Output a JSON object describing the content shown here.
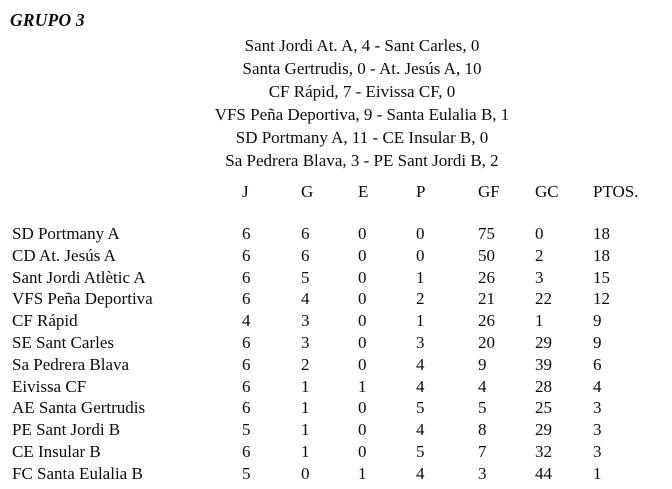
{
  "title": "GRUPO 3",
  "colors": {
    "text": "#0b0b0b",
    "background": "#ffffff"
  },
  "results": [
    "Sant Jordi At. A, 4 - Sant Carles, 0",
    "Santa Gertrudis, 0 - At. Jesús A, 10",
    "CF Rápid, 7 - Eivissa CF, 0",
    "VFS Peña Deportiva, 9 - Santa Eulalia B, 1",
    "SD Portmany A, 11 - CE Insular B, 0",
    "Sa Pedrera Blava, 3 - PE Sant Jordi B, 2"
  ],
  "standings": {
    "headers": {
      "team": "",
      "j": "J",
      "g": "G",
      "e": "E",
      "p": "P",
      "gf": "GF",
      "gc": "GC",
      "ptos": "PTOS."
    },
    "rows": [
      {
        "team": "SD Portmany A",
        "j": 6,
        "g": 6,
        "e": 0,
        "p": 0,
        "gf": 75,
        "gc": 0,
        "ptos": 18
      },
      {
        "team": "CD At. Jesús A",
        "j": 6,
        "g": 6,
        "e": 0,
        "p": 0,
        "gf": 50,
        "gc": 2,
        "ptos": 18
      },
      {
        "team": "Sant Jordi Atlètic A",
        "j": 6,
        "g": 5,
        "e": 0,
        "p": 1,
        "gf": 26,
        "gc": 3,
        "ptos": 15
      },
      {
        "team": "VFS Peña Deportiva",
        "j": 6,
        "g": 4,
        "e": 0,
        "p": 2,
        "gf": 21,
        "gc": 22,
        "ptos": 12
      },
      {
        "team": "CF Rápid",
        "j": 4,
        "g": 3,
        "e": 0,
        "p": 1,
        "gf": 26,
        "gc": 1,
        "ptos": 9
      },
      {
        "team": "SE Sant Carles",
        "j": 6,
        "g": 3,
        "e": 0,
        "p": 3,
        "gf": 20,
        "gc": 29,
        "ptos": 9
      },
      {
        "team": "Sa Pedrera Blava",
        "j": 6,
        "g": 2,
        "e": 0,
        "p": 4,
        "gf": 9,
        "gc": 39,
        "ptos": 6
      },
      {
        "team": "Eivissa CF",
        "j": 6,
        "g": 1,
        "e": 1,
        "p": 4,
        "gf": 4,
        "gc": 28,
        "ptos": 4
      },
      {
        "team": "AE Santa Gertrudis",
        "j": 6,
        "g": 1,
        "e": 0,
        "p": 5,
        "gf": 5,
        "gc": 25,
        "ptos": 3
      },
      {
        "team": "PE Sant Jordi B",
        "j": 5,
        "g": 1,
        "e": 0,
        "p": 4,
        "gf": 8,
        "gc": 29,
        "ptos": 3
      },
      {
        "team": "CE Insular B",
        "j": 6,
        "g": 1,
        "e": 0,
        "p": 5,
        "gf": 7,
        "gc": 32,
        "ptos": 3
      },
      {
        "team": "FC Santa Eulalia B",
        "j": 5,
        "g": 0,
        "e": 1,
        "p": 4,
        "gf": 3,
        "gc": 44,
        "ptos": 1
      }
    ]
  }
}
